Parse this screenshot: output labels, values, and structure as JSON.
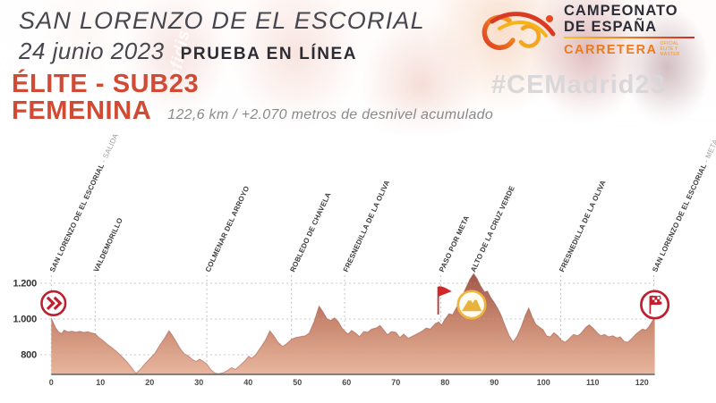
{
  "header": {
    "title": "SAN LORENZO DE EL ESCORIAL",
    "date": "24 junio 2023",
    "race_type": "PRUEBA EN LÍNEA",
    "categories_line1": "ÉLITE - SUB23",
    "categories_line2": "FEMENINA",
    "route_stats": "122,6 km / +2.070 metros de desnivel acumulado",
    "hashtag": "#CEMadrid23",
    "photo_text": "cofidis",
    "logo": {
      "line1": "CAMPEONATO",
      "line2": "DE ESPAÑA",
      "line3": "CARRETERA",
      "small_line1": "OFICIAL",
      "small_line2": "ÉLITE Y MÁSTER"
    }
  },
  "colors": {
    "accent_red": "#d14a33",
    "badge_red": "#bf1e2e",
    "flag_red": "#d02828",
    "gold": "#eeb53f",
    "mountain_gold": "#e9b23c",
    "profile_top": "#9e5347",
    "profile_mid": "#c8876f",
    "profile_bottom": "#e9b69e",
    "grid_gray": "#c9c9c9",
    "axis_gray": "#606060",
    "label_dark": "#3b3b3b",
    "label_muted": "#a0a0a0"
  },
  "chart_data": {
    "type": "area",
    "x_range_km": [
      0,
      122.6
    ],
    "y_range_m": [
      690,
      1265
    ],
    "x_ticks_km": [
      0,
      10,
      20,
      30,
      40,
      50,
      60,
      70,
      80,
      90,
      100,
      110,
      120
    ],
    "y_ticks": [
      {
        "value": 800,
        "label": "800"
      },
      {
        "value": 1000,
        "label": "1.000"
      },
      {
        "value": 1200,
        "label": "1.200"
      }
    ],
    "waypoints": [
      {
        "label": "SAN LORENZO DE EL ESCORIAL",
        "suffix": " - SALIDA",
        "km": 0
      },
      {
        "label": "VALDEMORILLO",
        "suffix": "",
        "km": 8.9
      },
      {
        "label": "COLMENAR DEL ARROYO",
        "suffix": "",
        "km": 31.6
      },
      {
        "label": "ROBLEDO DE CHAVELA",
        "suffix": "",
        "km": 48.8
      },
      {
        "label": "FRESNEDILLA DE LA OLIVA",
        "suffix": "",
        "km": 59.6
      },
      {
        "label": "PASO POR META",
        "suffix": "",
        "km": 79.1
      },
      {
        "label": "ALTO DE LA CRUZ VERDE",
        "suffix": "",
        "km": 85.5
      },
      {
        "label": "FRESNEDILLA DE LA OLIVA",
        "suffix": "",
        "km": 103.5
      },
      {
        "label": "SAN LORENZO DE EL ESCORIAL",
        "suffix": " - META",
        "km": 122.4
      }
    ],
    "markers": [
      {
        "type": "start",
        "km": 0.45,
        "elev": 1088
      },
      {
        "type": "flag",
        "km": 79.0,
        "elev": 1100
      },
      {
        "type": "mountain",
        "km": 85.4,
        "elev": 1080
      },
      {
        "type": "finish",
        "km": 122.6,
        "elev": 1080
      }
    ],
    "profile_km_m": [
      [
        0,
        1005
      ],
      [
        0.4,
        980
      ],
      [
        0.9,
        950
      ],
      [
        1.5,
        928
      ],
      [
        2.1,
        918
      ],
      [
        2.6,
        938
      ],
      [
        3.4,
        928
      ],
      [
        4.2,
        932
      ],
      [
        5.0,
        926
      ],
      [
        5.8,
        931
      ],
      [
        6.6,
        925
      ],
      [
        7.4,
        929
      ],
      [
        8.2,
        922
      ],
      [
        8.9,
        918
      ],
      [
        9.6,
        898
      ],
      [
        10.4,
        882
      ],
      [
        11.4,
        858
      ],
      [
        12.4,
        838
      ],
      [
        13.4,
        815
      ],
      [
        14.4,
        788
      ],
      [
        15.4,
        760
      ],
      [
        16.2,
        732
      ],
      [
        17.2,
        696
      ],
      [
        18.0,
        716
      ],
      [
        19.0,
        748
      ],
      [
        20.0,
        778
      ],
      [
        21.0,
        806
      ],
      [
        22.0,
        852
      ],
      [
        23.0,
        892
      ],
      [
        23.9,
        935
      ],
      [
        24.6,
        908
      ],
      [
        25.4,
        872
      ],
      [
        26.2,
        834
      ],
      [
        27.0,
        806
      ],
      [
        27.8,
        794
      ],
      [
        28.6,
        775
      ],
      [
        29.4,
        762
      ],
      [
        30.1,
        776
      ],
      [
        30.7,
        766
      ],
      [
        31.6,
        748
      ],
      [
        32.4,
        716
      ],
      [
        33.2,
        698
      ],
      [
        34.0,
        694
      ],
      [
        35.0,
        700
      ],
      [
        35.8,
        712
      ],
      [
        36.6,
        728
      ],
      [
        37.4,
        718
      ],
      [
        38.4,
        742
      ],
      [
        39.4,
        768
      ],
      [
        40.1,
        792
      ],
      [
        40.7,
        780
      ],
      [
        41.5,
        800
      ],
      [
        42.5,
        840
      ],
      [
        43.5,
        882
      ],
      [
        44.4,
        934
      ],
      [
        45.2,
        906
      ],
      [
        46.0,
        872
      ],
      [
        47.0,
        846
      ],
      [
        47.8,
        862
      ],
      [
        48.8,
        886
      ],
      [
        49.6,
        896
      ],
      [
        50.6,
        901
      ],
      [
        51.6,
        906
      ],
      [
        52.4,
        922
      ],
      [
        53.4,
        986
      ],
      [
        54.4,
        1072
      ],
      [
        55.2,
        1040
      ],
      [
        56.0,
        1002
      ],
      [
        56.8,
        992
      ],
      [
        57.5,
        1006
      ],
      [
        58.3,
        986
      ],
      [
        59.0,
        952
      ],
      [
        59.6,
        932
      ],
      [
        60.3,
        916
      ],
      [
        61.0,
        936
      ],
      [
        61.8,
        922
      ],
      [
        62.6,
        902
      ],
      [
        63.5,
        930
      ],
      [
        64.3,
        926
      ],
      [
        65.1,
        944
      ],
      [
        66.0,
        950
      ],
      [
        66.8,
        964
      ],
      [
        67.6,
        936
      ],
      [
        68.3,
        912
      ],
      [
        69.1,
        930
      ],
      [
        70.0,
        926
      ],
      [
        70.8,
        896
      ],
      [
        71.6,
        916
      ],
      [
        72.5,
        892
      ],
      [
        73.5,
        906
      ],
      [
        74.5,
        920
      ],
      [
        75.4,
        934
      ],
      [
        76.2,
        950
      ],
      [
        77.0,
        944
      ],
      [
        78.0,
        974
      ],
      [
        78.7,
        984
      ],
      [
        79.3,
        966
      ],
      [
        80.0,
        1000
      ],
      [
        80.8,
        1030
      ],
      [
        81.5,
        1024
      ],
      [
        82.2,
        1058
      ],
      [
        83.0,
        1100
      ],
      [
        84.0,
        1160
      ],
      [
        85.0,
        1220
      ],
      [
        85.8,
        1254
      ],
      [
        86.5,
        1226
      ],
      [
        87.2,
        1186
      ],
      [
        88.0,
        1152
      ],
      [
        88.6,
        1156
      ],
      [
        89.3,
        1120
      ],
      [
        90.0,
        1092
      ],
      [
        90.7,
        1060
      ],
      [
        91.4,
        1020
      ],
      [
        92.2,
        962
      ],
      [
        93.0,
        908
      ],
      [
        93.8,
        872
      ],
      [
        94.6,
        902
      ],
      [
        95.5,
        958
      ],
      [
        96.3,
        1020
      ],
      [
        97.0,
        1062
      ],
      [
        97.7,
        1012
      ],
      [
        98.4,
        972
      ],
      [
        99.1,
        956
      ],
      [
        99.9,
        940
      ],
      [
        100.6,
        906
      ],
      [
        101.4,
        900
      ],
      [
        102.1,
        924
      ],
      [
        102.9,
        906
      ],
      [
        103.6,
        882
      ],
      [
        104.4,
        870
      ],
      [
        105.2,
        890
      ],
      [
        106.1,
        914
      ],
      [
        106.9,
        906
      ],
      [
        107.6,
        920
      ],
      [
        108.6,
        954
      ],
      [
        109.3,
        968
      ],
      [
        110.1,
        948
      ],
      [
        110.9,
        924
      ],
      [
        111.6,
        906
      ],
      [
        112.4,
        914
      ],
      [
        113.2,
        900
      ],
      [
        114.1,
        906
      ],
      [
        114.9,
        894
      ],
      [
        115.6,
        900
      ],
      [
        116.4,
        874
      ],
      [
        117.1,
        870
      ],
      [
        117.9,
        890
      ],
      [
        118.7,
        914
      ],
      [
        119.4,
        930
      ],
      [
        120.1,
        944
      ],
      [
        120.8,
        938
      ],
      [
        121.5,
        960
      ],
      [
        122.1,
        988
      ],
      [
        122.6,
        1014
      ]
    ]
  }
}
